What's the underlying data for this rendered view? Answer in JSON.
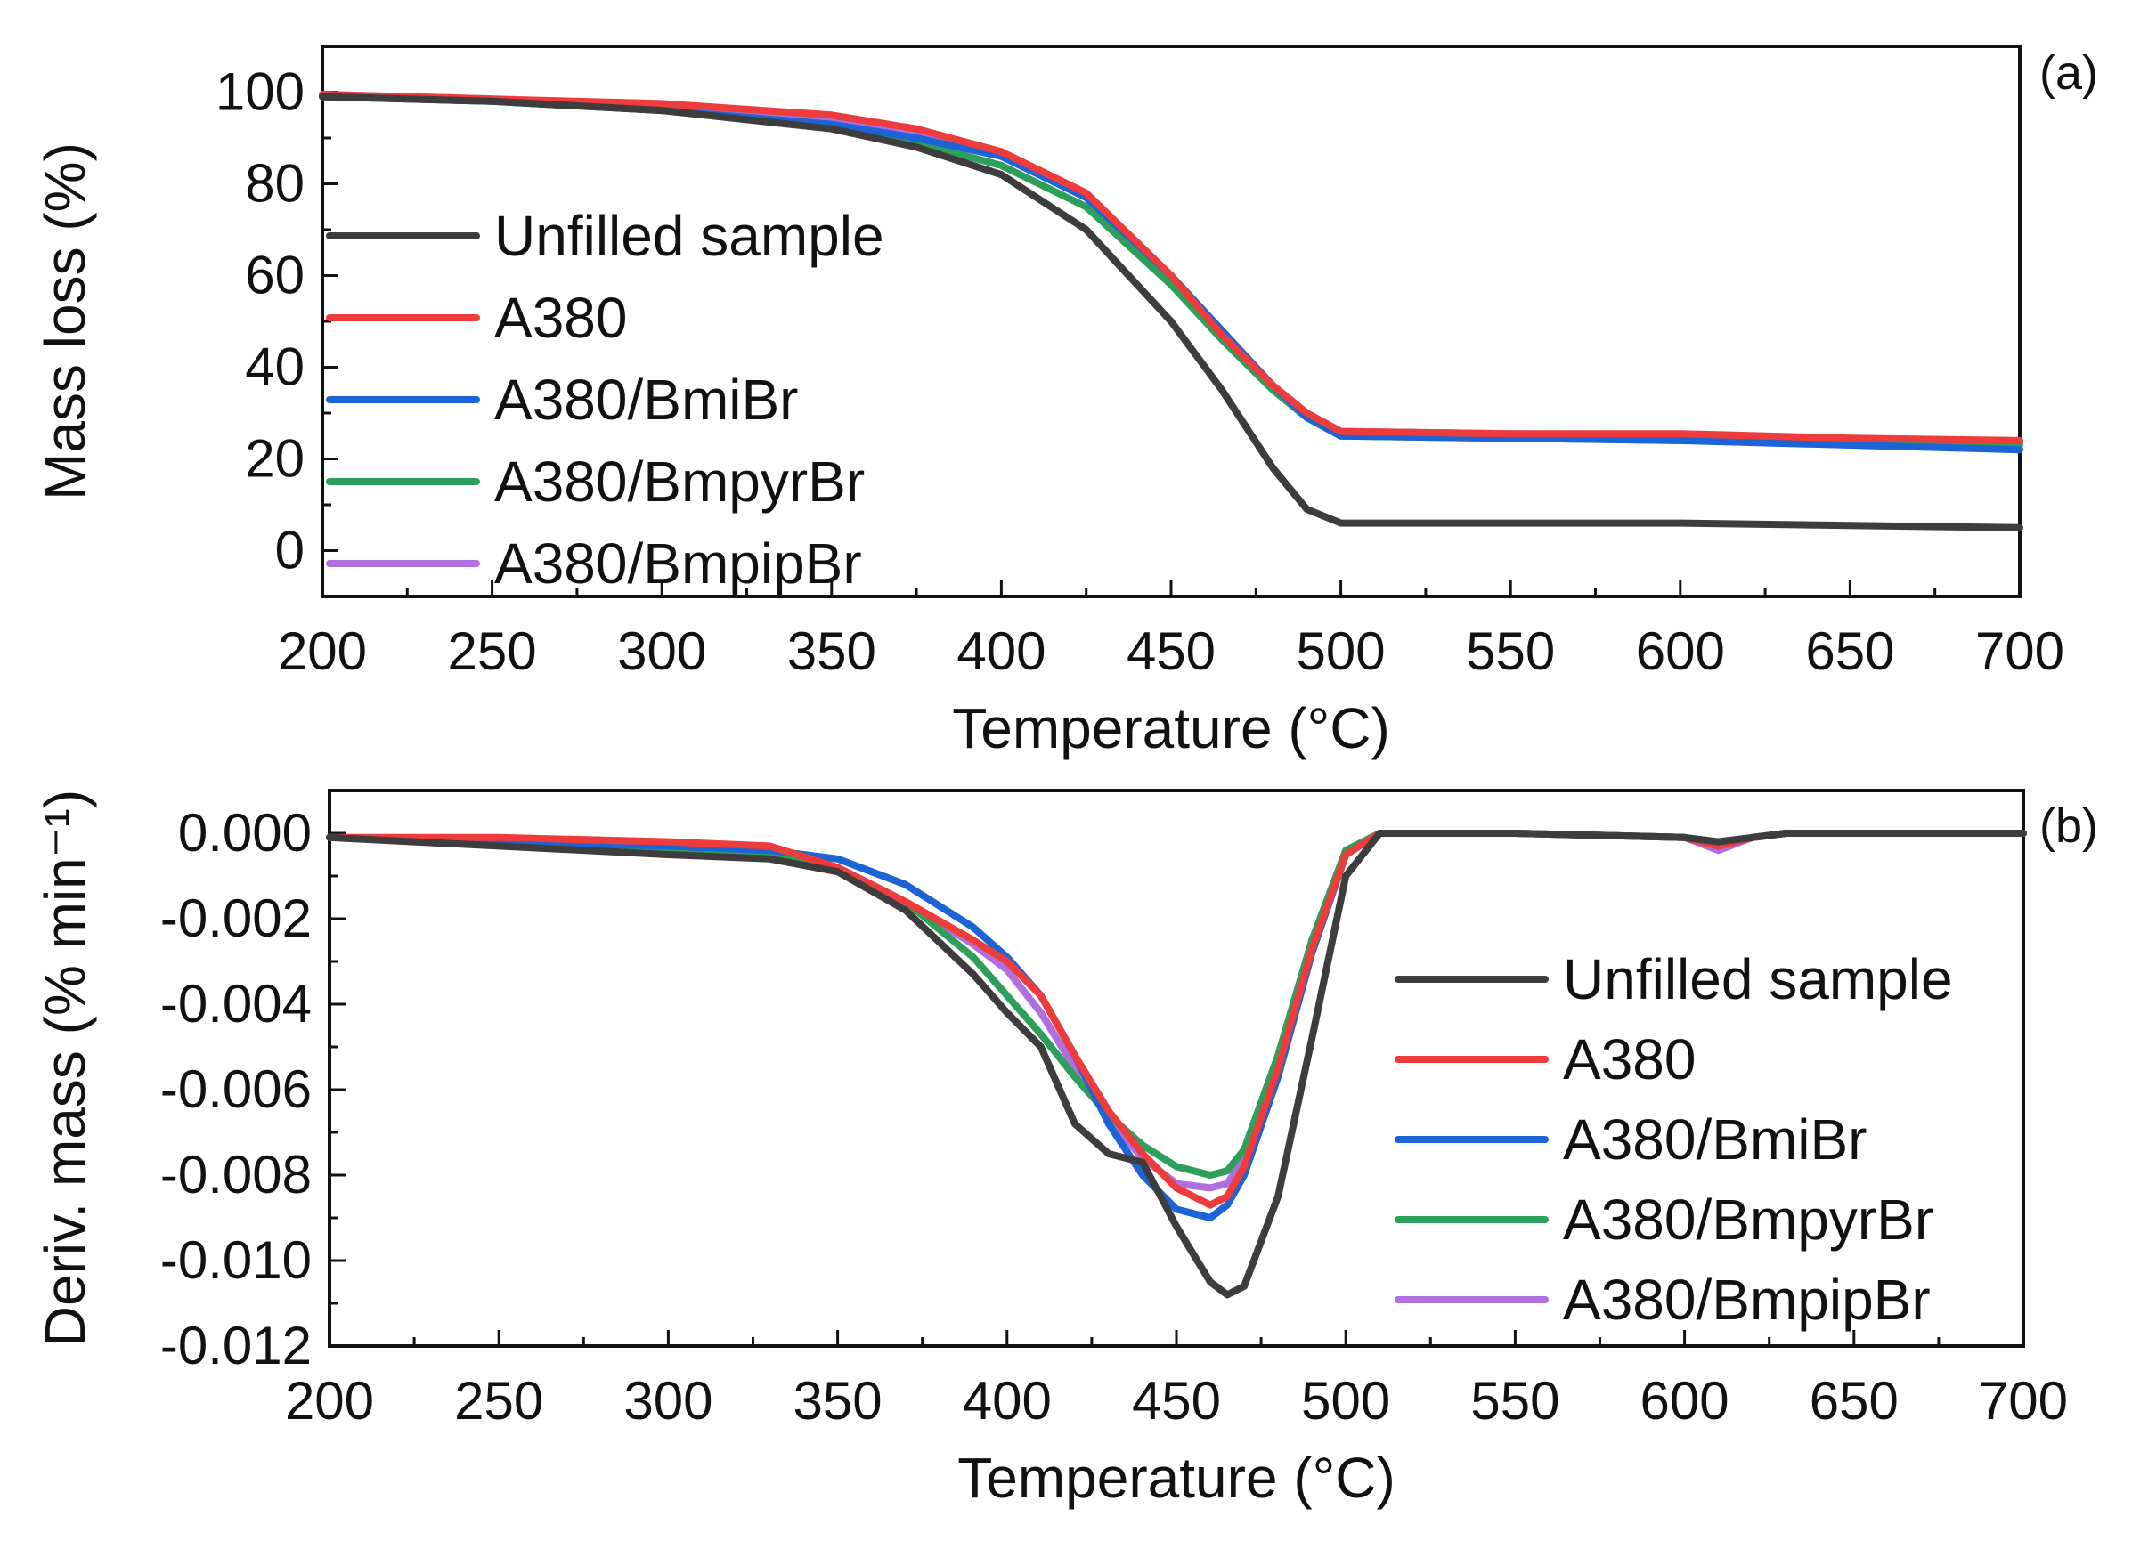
{
  "chart_data": [
    {
      "panel": "(a)",
      "type": "line",
      "xlabel": "Temperature (°C)",
      "ylabel": "Mass loss (%)",
      "xlim": [
        200,
        700
      ],
      "ylim": [
        -10,
        110
      ],
      "xticks": [
        200,
        250,
        300,
        350,
        400,
        450,
        500,
        550,
        600,
        650,
        700
      ],
      "yticks": [
        0,
        20,
        40,
        60,
        80,
        100
      ],
      "ytick_labels": [
        "0",
        "20",
        "40",
        "60",
        "80",
        "100"
      ],
      "legend_position": "center-left",
      "series": [
        {
          "name": "Unfilled sample",
          "color": "#3d3d3d",
          "x": [
            200,
            250,
            300,
            350,
            375,
            400,
            425,
            450,
            465,
            480,
            490,
            500,
            550,
            600,
            650,
            700
          ],
          "y": [
            99,
            98,
            96,
            92,
            88,
            82,
            70,
            50,
            35,
            18,
            9,
            6,
            6,
            6,
            5.5,
            5
          ]
        },
        {
          "name": "A380",
          "color": "#ee3b3b",
          "x": [
            200,
            250,
            300,
            350,
            375,
            400,
            425,
            450,
            465,
            480,
            490,
            500,
            550,
            600,
            650,
            700
          ],
          "y": [
            99.5,
            98.5,
            97.5,
            95,
            92,
            87,
            78,
            60,
            47,
            36,
            30,
            26,
            25.5,
            25.5,
            24.5,
            24
          ]
        },
        {
          "name": "A380/BmiBr",
          "color": "#1c63d6",
          "x": [
            200,
            250,
            300,
            350,
            375,
            400,
            425,
            450,
            465,
            480,
            490,
            500,
            550,
            600,
            650,
            700
          ],
          "y": [
            99,
            98,
            96,
            93,
            90,
            86,
            77,
            60,
            48,
            36,
            29,
            25,
            24.5,
            24,
            23,
            22
          ]
        },
        {
          "name": "A380/BmpyrBr",
          "color": "#2ca05a",
          "x": [
            200,
            250,
            300,
            350,
            375,
            400,
            425,
            450,
            465,
            480,
            490,
            500,
            550,
            600,
            650,
            700
          ],
          "y": [
            99,
            98,
            96,
            93,
            89,
            84,
            75,
            58,
            46,
            35,
            29,
            25,
            24.5,
            24,
            23.5,
            23
          ]
        },
        {
          "name": "A380/BmpipBr",
          "color": "#b06ee0",
          "x": [
            200,
            250,
            300,
            350,
            375,
            400,
            425,
            450,
            465,
            480,
            490,
            500,
            550,
            600,
            650,
            700
          ],
          "y": [
            99.5,
            98.5,
            97,
            94,
            91,
            86,
            77,
            59,
            47,
            36,
            30,
            26,
            25.5,
            25,
            24,
            23.5
          ]
        }
      ]
    },
    {
      "panel": "(b)",
      "type": "line",
      "xlabel": "Temperature (°C)",
      "ylabel": "Deriv. mass (% min⁻¹)",
      "xlim": [
        200,
        700
      ],
      "ylim": [
        -0.012,
        0.001
      ],
      "xticks": [
        200,
        250,
        300,
        350,
        400,
        450,
        500,
        550,
        600,
        650,
        700
      ],
      "yticks": [
        0,
        -0.002,
        -0.004,
        -0.006,
        -0.008,
        -0.01,
        -0.012
      ],
      "ytick_labels": [
        "0.000",
        "-0.002",
        "-0.004",
        "-0.006",
        "-0.008",
        "-0.010",
        "-0.012"
      ],
      "legend_position": "lower-right",
      "series": [
        {
          "name": "Unfilled sample",
          "color": "#3d3d3d",
          "x": [
            200,
            250,
            300,
            330,
            350,
            370,
            390,
            400,
            410,
            420,
            430,
            440,
            450,
            460,
            465,
            470,
            480,
            490,
            500,
            510,
            550,
            600,
            610,
            620,
            630,
            700
          ],
          "y": [
            -0.0001,
            -0.0003,
            -0.0005,
            -0.0006,
            -0.0009,
            -0.0018,
            -0.0033,
            -0.0042,
            -0.005,
            -0.0068,
            -0.0075,
            -0.0077,
            -0.0092,
            -0.0105,
            -0.0108,
            -0.0106,
            -0.0085,
            -0.0048,
            -0.001,
            0.0,
            0.0,
            -0.0001,
            -0.0002,
            -0.0001,
            0.0,
            0.0
          ]
        },
        {
          "name": "A380",
          "color": "#ee3b3b",
          "x": [
            200,
            250,
            300,
            330,
            350,
            370,
            390,
            400,
            410,
            420,
            430,
            440,
            450,
            460,
            465,
            470,
            480,
            490,
            500,
            510,
            550,
            600,
            610,
            620,
            630,
            700
          ],
          "y": [
            -0.0001,
            -0.0001,
            -0.0002,
            -0.0003,
            -0.0008,
            -0.0016,
            -0.0025,
            -0.003,
            -0.0038,
            -0.0052,
            -0.0065,
            -0.0075,
            -0.0083,
            -0.0087,
            -0.0085,
            -0.0078,
            -0.0055,
            -0.0027,
            -0.0005,
            0.0,
            0.0,
            -0.0001,
            -0.0003,
            -0.0001,
            0.0,
            0.0
          ]
        },
        {
          "name": "A380/BmiBr",
          "color": "#1c63d6",
          "x": [
            200,
            250,
            300,
            330,
            350,
            370,
            390,
            400,
            410,
            420,
            430,
            440,
            450,
            460,
            465,
            470,
            480,
            490,
            500,
            510,
            550,
            600,
            610,
            620,
            630,
            700
          ],
          "y": [
            -0.0001,
            -0.0002,
            -0.0003,
            -0.0004,
            -0.0006,
            -0.0012,
            -0.0022,
            -0.0029,
            -0.0038,
            -0.0052,
            -0.0068,
            -0.008,
            -0.0088,
            -0.009,
            -0.0087,
            -0.008,
            -0.0057,
            -0.0028,
            -0.0005,
            0.0,
            0.0,
            -0.0001,
            -0.0003,
            -0.0001,
            0.0,
            0.0
          ]
        },
        {
          "name": "A380/BmpyrBr",
          "color": "#2ca05a",
          "x": [
            200,
            250,
            300,
            330,
            350,
            370,
            390,
            400,
            410,
            420,
            430,
            440,
            450,
            460,
            465,
            470,
            480,
            490,
            500,
            510,
            550,
            600,
            610,
            620,
            630,
            700
          ],
          "y": [
            -0.0001,
            -0.0002,
            -0.0004,
            -0.0005,
            -0.0009,
            -0.0016,
            -0.0029,
            -0.0038,
            -0.0047,
            -0.0057,
            -0.0066,
            -0.0073,
            -0.0078,
            -0.008,
            -0.0079,
            -0.0074,
            -0.0052,
            -0.0025,
            -0.0004,
            0.0,
            0.0,
            -0.0001,
            -0.0003,
            -0.0001,
            0.0,
            0.0
          ]
        },
        {
          "name": "A380/BmpipBr",
          "color": "#b06ee0",
          "x": [
            200,
            250,
            300,
            330,
            350,
            370,
            390,
            400,
            410,
            420,
            430,
            440,
            450,
            460,
            465,
            470,
            480,
            490,
            500,
            510,
            550,
            600,
            610,
            620,
            630,
            700
          ],
          "y": [
            -0.0001,
            -0.0002,
            -0.0003,
            -0.0004,
            -0.0008,
            -0.0016,
            -0.0026,
            -0.0032,
            -0.0042,
            -0.0055,
            -0.0067,
            -0.0076,
            -0.0082,
            -0.0083,
            -0.0082,
            -0.0076,
            -0.0054,
            -0.0026,
            -0.0005,
            0.0,
            0.0,
            -0.0001,
            -0.0004,
            -0.0001,
            0.0,
            0.0
          ]
        }
      ]
    }
  ]
}
